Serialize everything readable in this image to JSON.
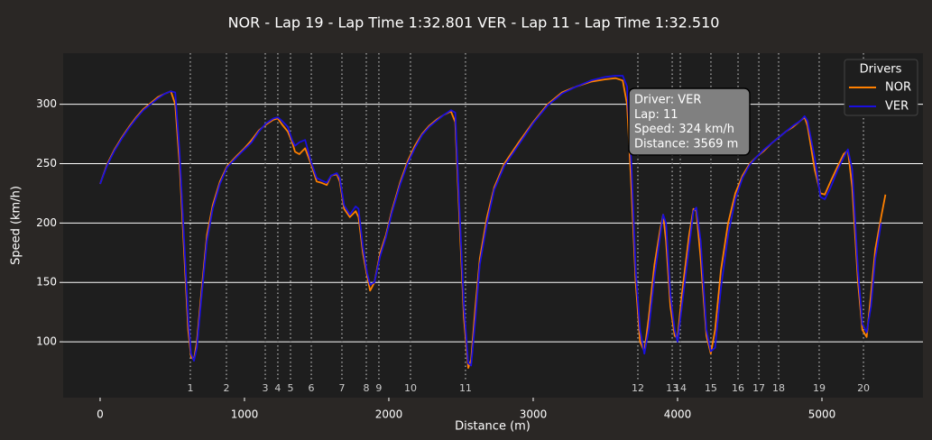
{
  "chart_data": {
    "type": "line",
    "title": "NOR - Lap 19 - Lap Time 1:32.801   VER - Lap 11 - Lap Time 1:32.510",
    "xlabel": "Distance (m)",
    "ylabel": "Speed (km/h)",
    "xlim": [
      -256,
      5700
    ],
    "ylim": [
      53,
      343
    ],
    "xticks": [
      0,
      1000,
      2000,
      3000,
      4000,
      5000
    ],
    "yticks": [
      100,
      150,
      200,
      250,
      300
    ],
    "grid": true,
    "legend_title": "Drivers",
    "legend": "upper right",
    "x": [
      0,
      50,
      100,
      150,
      200,
      250,
      300,
      350,
      400,
      450,
      490,
      520,
      550,
      580,
      610,
      630,
      650,
      670,
      700,
      740,
      780,
      830,
      880,
      950,
      1000,
      1050,
      1100,
      1150,
      1200,
      1230,
      1260,
      1300,
      1330,
      1350,
      1380,
      1420,
      1460,
      1500,
      1530,
      1570,
      1600,
      1640,
      1660,
      1690,
      1730,
      1770,
      1790,
      1820,
      1850,
      1870,
      1900,
      1940,
      1980,
      2020,
      2080,
      2130,
      2180,
      2230,
      2280,
      2330,
      2380,
      2430,
      2460,
      2490,
      2520,
      2550,
      2570,
      2600,
      2630,
      2680,
      2730,
      2800,
      2900,
      3000,
      3100,
      3200,
      3300,
      3400,
      3500,
      3570,
      3620,
      3650,
      3680,
      3710,
      3740,
      3770,
      3800,
      3840,
      3880,
      3900,
      3920,
      3950,
      3980,
      4000,
      4030,
      4080,
      4110,
      4130,
      4160,
      4200,
      4230,
      4260,
      4300,
      4350,
      4400,
      4450,
      4500,
      4550,
      4600,
      4650,
      4700,
      4750,
      4800,
      4850,
      4880,
      4900,
      4950,
      4990,
      5020,
      5060,
      5110,
      5150,
      5180,
      5210,
      5250,
      5280,
      5310,
      5340,
      5370,
      5410,
      5440
    ],
    "series": [
      {
        "name": "NOR",
        "color": "#ff8000",
        "values": [
          233,
          250,
          262,
          272,
          281,
          289,
          296,
          301,
          306,
          309,
          311,
          300,
          250,
          180,
          110,
          87,
          85,
          100,
          140,
          190,
          215,
          235,
          248,
          257,
          263,
          270,
          278,
          283,
          287,
          288,
          283,
          277,
          268,
          260,
          258,
          263,
          250,
          235,
          234,
          232,
          240,
          241,
          235,
          212,
          205,
          210,
          205,
          175,
          155,
          143,
          150,
          175,
          190,
          210,
          235,
          252,
          265,
          275,
          282,
          287,
          291,
          294,
          285,
          200,
          120,
          78,
          85,
          130,
          170,
          205,
          230,
          250,
          268,
          285,
          300,
          310,
          315,
          319,
          321,
          322,
          320,
          300,
          230,
          150,
          100,
          92,
          120,
          165,
          195,
          207,
          185,
          130,
          105,
          103,
          140,
          190,
          212,
          210,
          170,
          105,
          90,
          110,
          160,
          200,
          225,
          240,
          250,
          256,
          261,
          267,
          272,
          277,
          281,
          286,
          289,
          282,
          245,
          225,
          224,
          235,
          248,
          258,
          261,
          230,
          150,
          110,
          104,
          140,
          178,
          205,
          224
        ]
      },
      {
        "name": "VER",
        "color": "#1a0fe0",
        "values": [
          233,
          249,
          261,
          271,
          280,
          288,
          295,
          300,
          305,
          309,
          311,
          310,
          260,
          190,
          120,
          90,
          84,
          95,
          135,
          185,
          212,
          233,
          247,
          256,
          262,
          268,
          277,
          284,
          288,
          289,
          286,
          281,
          270,
          265,
          268,
          270,
          252,
          238,
          236,
          234,
          240,
          242,
          238,
          215,
          207,
          214,
          212,
          180,
          158,
          148,
          150,
          172,
          188,
          208,
          233,
          250,
          263,
          274,
          281,
          286,
          291,
          295,
          293,
          210,
          130,
          82,
          80,
          120,
          165,
          200,
          228,
          248,
          266,
          284,
          299,
          309,
          315,
          320,
          323,
          324,
          324,
          315,
          250,
          160,
          110,
          90,
          110,
          155,
          190,
          207,
          200,
          140,
          110,
          100,
          130,
          180,
          210,
          213,
          185,
          110,
          92,
          95,
          145,
          190,
          220,
          238,
          249,
          256,
          262,
          267,
          272,
          277,
          282,
          286,
          290,
          286,
          255,
          222,
          220,
          230,
          245,
          255,
          262,
          245,
          160,
          115,
          108,
          130,
          170,
          200,
          null
        ]
      }
    ],
    "corners": {
      "numbers": [
        1,
        2,
        3,
        4,
        5,
        6,
        7,
        8,
        9,
        10,
        11,
        12,
        13,
        14,
        15,
        16,
        17,
        18,
        19,
        20
      ],
      "distances": [
        625,
        875,
        1144,
        1231,
        1319,
        1463,
        1675,
        1844,
        1931,
        2150,
        2531,
        3725,
        3963,
        4019,
        4231,
        4419,
        4563,
        4700,
        4981,
        5288
      ]
    },
    "tooltip": [
      "Driver: VER",
      "Lap: 11",
      "Speed: 324 km/h",
      "Distance: 3569 m"
    ]
  }
}
